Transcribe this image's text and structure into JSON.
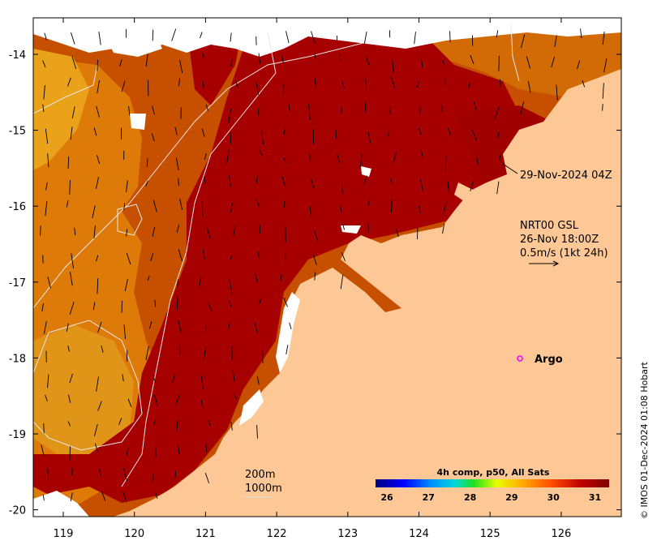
{
  "axes": {
    "lon_ticks": [
      "119",
      "120",
      "121",
      "122",
      "123",
      "124",
      "125",
      "126"
    ],
    "lat_ticks": [
      "-14",
      "-15",
      "-16",
      "-17",
      "-18",
      "-19",
      "-20"
    ]
  },
  "annotations": {
    "pass_time": "29-Nov-2024 04Z",
    "current_product": "NRT00 GSL",
    "current_time": "26-Nov 18:00Z",
    "current_scale": "0.5m/s (1kt 24h)",
    "argo_label": "Argo",
    "contour_200": "200m",
    "contour_1000": "1000m"
  },
  "colorbar": {
    "title": "4h comp, p50, All Sats",
    "labels": [
      "26",
      "27",
      "28",
      "29",
      "30",
      "31"
    ],
    "colors": [
      "#00007f",
      "#0000ff",
      "#0080ff",
      "#00e0e0",
      "#40ff40",
      "#e0ff00",
      "#ffb000",
      "#ff5000",
      "#c00000",
      "#7f0000"
    ]
  },
  "credit": "© IMOS 01-Dec-2024 01:08 Hobart",
  "colors": {
    "land": "#fdc896",
    "sea_hot": "#a80000",
    "sea_warm": "#d86400",
    "sea_mild": "#e89a10",
    "cloud": "#ffffff",
    "argo": "#ff00ff"
  }
}
